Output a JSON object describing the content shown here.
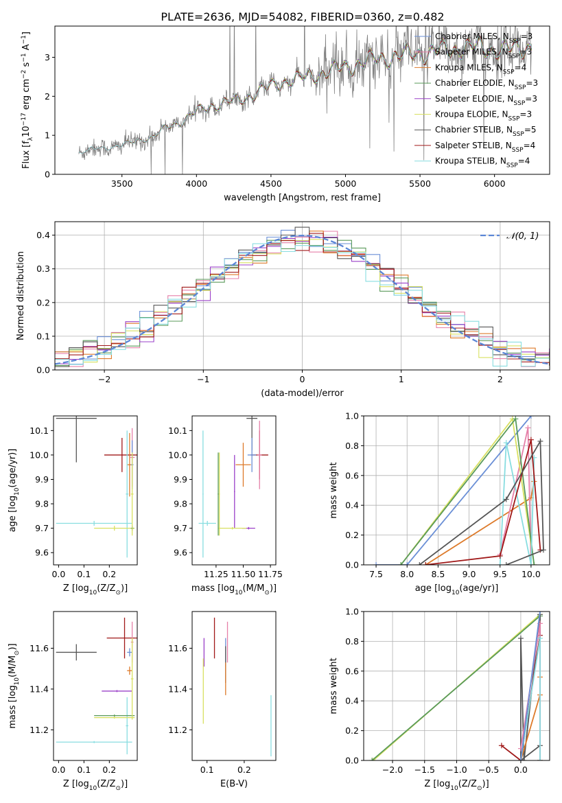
{
  "figure": {
    "title": "PLATE=2636, MJD=54082, FIBERID=0360, z=0.482"
  },
  "colors": {
    "Chabrier MILES": "#6a8fd6",
    "Salpeter MILES": "#e57fa8",
    "Kroupa MILES": "#dd7a2a",
    "Chabrier ELODIE": "#5a9a5a",
    "Salpeter ELODIE": "#9b40c8",
    "Kroupa ELODIE": "#d8e060",
    "Chabrier STELIB": "#555555",
    "Salpeter STELIB": "#a01818",
    "Kroupa STELIB": "#88dde0",
    "data": "#808080",
    "gauss": "#5b86d6"
  },
  "chart_data": [
    {
      "id": "spectrum",
      "type": "line",
      "xlabel": "wavelength [Angstrom, rest frame]",
      "ylabel_main": "Flux [f",
      "ylabel_sub": "λ",
      "ylabel_rest": "10",
      "ylabel_exp1": "−17",
      "ylabel_mid": " erg cm",
      "ylabel_exp2": "−2",
      "ylabel_s": " s",
      "ylabel_exp3": "−1",
      "ylabel_a": " A",
      "ylabel_exp4": "−1",
      "ylabel_end": "]",
      "xlim": [
        3050,
        6370
      ],
      "ylim": [
        0,
        3.8
      ],
      "xticks": [
        3500,
        4000,
        4500,
        5000,
        5500,
        6000
      ],
      "yticks": [
        0,
        1,
        2,
        3
      ],
      "continuum": [
        [
          3210,
          0.55
        ],
        [
          3300,
          0.65
        ],
        [
          3400,
          0.68
        ],
        [
          3500,
          0.75
        ],
        [
          3600,
          0.85
        ],
        [
          3700,
          0.95
        ],
        [
          3800,
          1.2
        ],
        [
          3900,
          1.35
        ],
        [
          3950,
          1.5
        ],
        [
          4000,
          1.6
        ],
        [
          4100,
          1.75
        ],
        [
          4200,
          1.85
        ],
        [
          4300,
          1.9
        ],
        [
          4400,
          2.1
        ],
        [
          4500,
          2.25
        ],
        [
          4600,
          2.4
        ],
        [
          4700,
          2.45
        ],
        [
          4800,
          2.55
        ],
        [
          4900,
          2.65
        ],
        [
          5000,
          2.75
        ],
        [
          5100,
          2.85
        ],
        [
          5200,
          2.95
        ],
        [
          5300,
          3.0
        ],
        [
          5400,
          3.05
        ],
        [
          5500,
          3.1
        ],
        [
          5600,
          3.15
        ],
        [
          5700,
          3.2
        ],
        [
          5800,
          3.25
        ],
        [
          5900,
          3.25
        ],
        [
          6000,
          3.2
        ],
        [
          6100,
          3.2
        ],
        [
          6200,
          3.25
        ],
        [
          6250,
          3.3
        ]
      ],
      "legend": [
        {
          "name": "Chabrier MILES, N",
          "sub": "SSP",
          "val": "=3"
        },
        {
          "name": "Salpeter MILES, N",
          "sub": "SSP",
          "val": "=3"
        },
        {
          "name": "Kroupa MILES, N",
          "sub": "SSP",
          "val": "=4"
        },
        {
          "name": "Chabrier ELODIE, N",
          "sub": "SSP",
          "val": "=3"
        },
        {
          "name": "Salpeter ELODIE, N",
          "sub": "SSP",
          "val": "=3"
        },
        {
          "name": "Kroupa ELODIE, N",
          "sub": "SSP",
          "val": "=3"
        },
        {
          "name": "Chabrier STELIB, N",
          "sub": "SSP",
          "val": "=5"
        },
        {
          "name": "Salpeter STELIB, N",
          "sub": "SSP",
          "val": "=4"
        },
        {
          "name": "Kroupa STELIB, N",
          "sub": "SSP",
          "val": "=4"
        }
      ],
      "legend_keys": [
        "Chabrier MILES",
        "Salpeter MILES",
        "Kroupa MILES",
        "Chabrier ELODIE",
        "Salpeter ELODIE",
        "Kroupa ELODIE",
        "Chabrier STELIB",
        "Salpeter STELIB",
        "Kroupa STELIB"
      ]
    },
    {
      "id": "residuals",
      "type": "line",
      "xlabel": "(data-model)/error",
      "ylabel": "Normed distribution",
      "xlim": [
        -2.5,
        2.5
      ],
      "ylim": [
        0,
        0.44
      ],
      "xticks": [
        -2,
        -1,
        0,
        1,
        2
      ],
      "yticks": [
        0.0,
        0.1,
        0.2,
        0.3,
        0.4
      ],
      "legend_label": "𝒩(0, 1)",
      "grid": true
    },
    {
      "id": "age-vs-Z",
      "type": "scatter",
      "xlabel": "Z [log",
      "xlabel_sub": "10",
      "xlabel_rest": "(Z/Z",
      "xlabel_sub2": "⊙",
      "xlabel_end": ")]",
      "ylabel": "age  [log",
      "ylabel_sub": "10",
      "ylabel_rest": "(age/yr)]",
      "xlim": [
        -0.02,
        0.31
      ],
      "ylim": [
        9.55,
        10.16
      ],
      "xticks": [
        0.0,
        0.1,
        0.2
      ],
      "yticks": [
        9.6,
        9.7,
        9.8,
        9.9,
        10.0,
        10.1
      ],
      "points": [
        {
          "key": "Chabrier STELIB",
          "x": 0.07,
          "y": 10.15,
          "xerr": 0.08,
          "yerr": 0.18
        },
        {
          "key": "Salpeter STELIB",
          "x": 0.25,
          "y": 10.0,
          "xerr": 0.07,
          "yerr": 0.07
        },
        {
          "key": "Kroupa MILES",
          "x": 0.28,
          "y": 9.96,
          "xerr": 0.01,
          "yerr": 0.13
        },
        {
          "key": "Salpeter MILES",
          "x": 0.29,
          "y": 9.99,
          "xerr": 0.01,
          "yerr": 0.12
        },
        {
          "key": "Chabrier MILES",
          "x": 0.29,
          "y": 9.96,
          "xerr": 0.005,
          "yerr": 0.1
        },
        {
          "key": "Kroupa STELIB",
          "x": 0.14,
          "y": 9.72,
          "xerr": 0.15,
          "yerr": 0.01
        },
        {
          "key": "Kroupa STELIB",
          "x": 0.27,
          "y": 9.84,
          "xerr": 0.005,
          "yerr": 0.26
        },
        {
          "key": "Kroupa ELODIE",
          "x": 0.22,
          "y": 9.7,
          "xerr": 0.08,
          "yerr": 0.01
        },
        {
          "key": "Chabrier ELODIE",
          "x": 0.29,
          "y": 9.7,
          "xerr": 0.005,
          "yerr": 0.01
        },
        {
          "key": "Kroupa ELODIE",
          "x": 0.29,
          "y": 9.84,
          "xerr": 0.005,
          "yerr": 0.17
        }
      ]
    },
    {
      "id": "age-vs-mass",
      "type": "scatter",
      "xlabel": "mass [log",
      "xlabel_sub": "10",
      "xlabel_rest": "(M/M",
      "xlabel_sub2": "⊙",
      "xlabel_end": ")]",
      "xlim": [
        11.03,
        11.8
      ],
      "ylim": [
        9.55,
        10.16
      ],
      "xticks": [
        11.25,
        11.5,
        11.75
      ],
      "yticks": [
        9.6,
        9.7,
        9.8,
        9.9,
        10.0,
        10.1
      ],
      "points": [
        {
          "key": "Chabrier STELIB",
          "x": 11.58,
          "y": 10.15,
          "xerr": 0.05,
          "yerr": 0.13
        },
        {
          "key": "Salpeter STELIB",
          "x": 11.65,
          "y": 10.0,
          "xerr": 0.08,
          "yerr": 0.1
        },
        {
          "key": "Salpeter MILES",
          "x": 11.65,
          "y": 10.0,
          "xerr": 0.02,
          "yerr": 0.14
        },
        {
          "key": "Chabrier MILES",
          "x": 11.58,
          "y": 10.0,
          "xerr": 0.04,
          "yerr": 0.07
        },
        {
          "key": "Kroupa MILES",
          "x": 11.5,
          "y": 9.96,
          "xerr": 0.07,
          "yerr": 0.09
        },
        {
          "key": "Salpeter ELODIE",
          "x": 11.42,
          "y": 9.85,
          "xerr": 0.005,
          "yerr": 0.15
        },
        {
          "key": "Salpeter ELODIE",
          "x": 11.55,
          "y": 9.7,
          "xerr": 0.06,
          "yerr": 0.005
        },
        {
          "key": "Kroupa STELIB",
          "x": 11.17,
          "y": 9.72,
          "xerr": 0.08,
          "yerr": 0.01
        },
        {
          "key": "Kroupa STELIB",
          "x": 11.13,
          "y": 9.84,
          "xerr": 0.005,
          "yerr": 0.26
        },
        {
          "key": "Kroupa ELODIE",
          "x": 11.4,
          "y": 9.7,
          "xerr": 0.13,
          "yerr": 0.005
        },
        {
          "key": "Chabrier ELODIE",
          "x": 11.27,
          "y": 9.84,
          "xerr": 0.005,
          "yerr": 0.17
        },
        {
          "key": "Kroupa ELODIE",
          "x": 11.28,
          "y": 9.84,
          "xerr": 0.005,
          "yerr": 0.17
        }
      ]
    },
    {
      "id": "weight-vs-age",
      "type": "line",
      "xlabel": "age  [log",
      "xlabel_sub": "10",
      "xlabel_rest": "(age/yr)]",
      "ylabel": "mass weight",
      "xlim": [
        7.3,
        10.3
      ],
      "ylim": [
        0,
        1.0
      ],
      "xticks": [
        7.5,
        8.0,
        8.5,
        9.0,
        9.5,
        10.0
      ],
      "yticks": [
        0.0,
        0.2,
        0.4,
        0.6,
        0.8,
        1.0
      ],
      "grid": true,
      "series": [
        {
          "key": "Chabrier MILES",
          "x": [
            7.5,
            8.0,
            10.0
          ],
          "y": [
            0.0,
            0.0,
            1.0
          ]
        },
        {
          "key": "Kroupa MILES",
          "x": [
            8.3,
            10.0,
            10.05
          ],
          "y": [
            0.0,
            0.45,
            0.56
          ]
        },
        {
          "key": "Salpeter MILES",
          "x": [
            9.5,
            9.95,
            10.0
          ],
          "y": [
            0.07,
            0.92,
            0.0
          ]
        },
        {
          "key": "Kroupa ELODIE",
          "x": [
            7.9,
            9.7,
            10.05
          ],
          "y": [
            0.0,
            0.98,
            0.0
          ]
        },
        {
          "key": "Chabrier ELODIE",
          "x": [
            7.9,
            9.75,
            10.05
          ],
          "y": [
            0.0,
            0.98,
            0.0
          ]
        },
        {
          "key": "Kroupa STELIB",
          "x": [
            9.5,
            9.6,
            10.0,
            10.05
          ],
          "y": [
            0.0,
            0.82,
            0.0,
            0.72
          ]
        },
        {
          "key": "Salpeter STELIB",
          "x": [
            8.3,
            9.5,
            10.0,
            10.15
          ],
          "y": [
            0.0,
            0.06,
            0.84,
            0.1
          ]
        },
        {
          "key": "Chabrier STELIB",
          "x": [
            8.2,
            9.6,
            10.15,
            10.2,
            9.6
          ],
          "y": [
            0.0,
            0.44,
            0.83,
            0.1,
            0.0
          ]
        }
      ]
    },
    {
      "id": "mass-vs-Z",
      "type": "scatter",
      "xlabel": "Z [log",
      "xlabel_sub": "10",
      "xlabel_rest": "(Z/Z",
      "xlabel_sub2": "⊙",
      "xlabel_end": ")]",
      "ylabel": "mass [log",
      "ylabel_sub": "10",
      "ylabel_rest": "(M/M",
      "ylabel_sub2": "⊙",
      "ylabel_end": ")]",
      "xlim": [
        -0.02,
        0.31
      ],
      "ylim": [
        11.05,
        11.78
      ],
      "xticks": [
        0.0,
        0.1,
        0.2
      ],
      "yticks": [
        11.2,
        11.4,
        11.6
      ],
      "points": [
        {
          "key": "Chabrier STELIB",
          "x": 0.07,
          "y": 11.58,
          "xerr": 0.08,
          "yerr": 0.04
        },
        {
          "key": "Salpeter STELIB",
          "x": 0.26,
          "y": 11.65,
          "xerr": 0.07,
          "yerr": 0.1
        },
        {
          "key": "Salpeter MILES",
          "x": 0.29,
          "y": 11.63,
          "xerr": 0.005,
          "yerr": 0.1
        },
        {
          "key": "Chabrier MILES",
          "x": 0.28,
          "y": 11.58,
          "xerr": 0.01,
          "yerr": 0.02
        },
        {
          "key": "Kroupa MILES",
          "x": 0.28,
          "y": 11.49,
          "xerr": 0.01,
          "yerr": 0.02
        },
        {
          "key": "Salpeter ELODIE",
          "x": 0.23,
          "y": 11.39,
          "xerr": 0.06,
          "yerr": 0.005
        },
        {
          "key": "Kroupa STELIB",
          "x": 0.14,
          "y": 11.14,
          "xerr": 0.15,
          "yerr": 0.005
        },
        {
          "key": "Kroupa STELIB",
          "x": 0.27,
          "y": 11.22,
          "xerr": 0.005,
          "yerr": 0.14
        },
        {
          "key": "Kroupa ELODIE",
          "x": 0.22,
          "y": 11.26,
          "xerr": 0.08,
          "yerr": 0.005
        },
        {
          "key": "Chabrier ELODIE",
          "x": 0.22,
          "y": 11.27,
          "xerr": 0.08,
          "yerr": 0.005
        },
        {
          "key": "Kroupa ELODIE",
          "x": 0.29,
          "y": 11.45,
          "xerr": 0.005,
          "yerr": 0.2
        }
      ]
    },
    {
      "id": "mass-vs-EBV",
      "type": "scatter",
      "xlabel": "E(B-V)",
      "xlim": [
        0.06,
        0.285
      ],
      "ylim": [
        11.05,
        11.78
      ],
      "xticks": [
        0.1,
        0.2
      ],
      "yticks": [
        11.2,
        11.4,
        11.6
      ],
      "points": [
        {
          "key": "Salpeter STELIB",
          "x": 0.12,
          "y": 11.65,
          "xerr": 0.0,
          "yerr": 0.1
        },
        {
          "key": "Salpeter MILES",
          "x": 0.155,
          "y": 11.63,
          "xerr": 0.0,
          "yerr": 0.1
        },
        {
          "key": "Chabrier MILES",
          "x": 0.15,
          "y": 11.58,
          "xerr": 0.0,
          "yerr": 0.07
        },
        {
          "key": "Chabrier STELIB",
          "x": 0.15,
          "y": 11.52,
          "xerr": 0.0,
          "yerr": 0.09
        },
        {
          "key": "Kroupa MILES",
          "x": 0.15,
          "y": 11.45,
          "xerr": 0.0,
          "yerr": 0.08
        },
        {
          "key": "Salpeter ELODIE",
          "x": 0.092,
          "y": 11.58,
          "xerr": 0.0,
          "yerr": 0.07
        },
        {
          "key": "Kroupa ELODIE",
          "x": 0.09,
          "y": 11.39,
          "xerr": 0.0,
          "yerr": 0.16
        },
        {
          "key": "Kroupa STELIB",
          "x": 0.272,
          "y": 11.22,
          "xerr": 0.0,
          "yerr": 0.15
        }
      ]
    },
    {
      "id": "weight-vs-Z",
      "type": "line",
      "xlabel": "Z [log",
      "xlabel_sub": "10",
      "xlabel_rest": "(Z/Z",
      "xlabel_sub2": "⊙",
      "xlabel_end": ")]",
      "ylabel": "mass weight",
      "xlim": [
        -2.45,
        0.45
      ],
      "ylim": [
        0,
        1.0
      ],
      "xticks": [
        -2.0,
        -1.5,
        -1.0,
        -0.5,
        0.0
      ],
      "yticks": [
        0.0,
        0.2,
        0.4,
        0.6,
        0.8,
        1.0
      ],
      "grid": true,
      "series": [
        {
          "key": "Kroupa ELODIE",
          "x": [
            -2.3,
            0.3,
            0.3
          ],
          "y": [
            0.0,
            0.98,
            0.0
          ]
        },
        {
          "key": "Chabrier ELODIE",
          "x": [
            -2.32,
            0.3,
            0.3
          ],
          "y": [
            0.0,
            0.97,
            0.0
          ]
        },
        {
          "key": "Chabrier STELIB",
          "x": [
            0.0,
            0.0,
            0.05,
            0.3,
            0.3,
            0.0
          ],
          "y": [
            0.0,
            0.82,
            0.0,
            0.98,
            0.1,
            0.0
          ]
        },
        {
          "key": "Salpeter STELIB",
          "x": [
            -0.3,
            0.0,
            0.3,
            0.3
          ],
          "y": [
            0.1,
            0.0,
            0.84,
            0.0
          ]
        },
        {
          "key": "Kroupa MILES",
          "x": [
            0.0,
            0.3,
            0.3
          ],
          "y": [
            0.0,
            0.44,
            0.56
          ]
        },
        {
          "key": "Salpeter MILES",
          "x": [
            0.0,
            0.3,
            0.3
          ],
          "y": [
            0.08,
            0.92,
            0.0
          ]
        },
        {
          "key": "Kroupa STELIB",
          "x": [
            0.0,
            0.3,
            0.3
          ],
          "y": [
            0.0,
            0.82,
            0.0
          ]
        },
        {
          "key": "Chabrier MILES",
          "x": [
            0.0,
            0.3
          ],
          "y": [
            0.0,
            1.0
          ]
        }
      ]
    }
  ]
}
